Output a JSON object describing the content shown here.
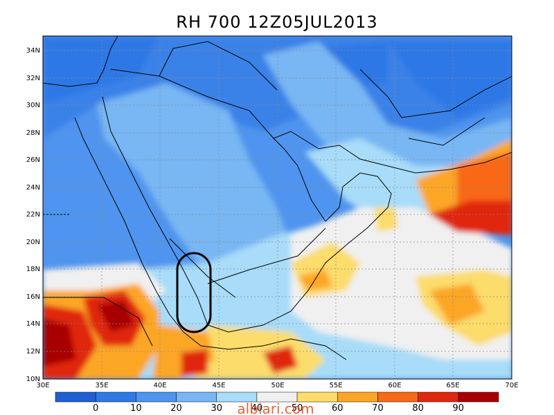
{
  "title": "RH 700 12Z05JUL2013",
  "lat_labels": [
    "34N",
    "32N",
    "30N",
    "28N",
    "26N",
    "24N",
    "22N",
    "20N",
    "18N",
    "16N",
    "14N",
    "12N",
    "10N"
  ],
  "lon_labels": [
    "30E",
    "35E",
    "40E",
    "45E",
    "50E",
    "55E",
    "60E",
    "65E",
    "70E"
  ],
  "colorbar": {
    "colors": [
      "#1f5fd6",
      "#2f78e6",
      "#4f94ee",
      "#78b6f4",
      "#a8dcf8",
      "#f0f0f0",
      "#fcdc6a",
      "#fca628",
      "#f86818",
      "#e02810",
      "#a80000"
    ],
    "labels": [
      "0",
      "10",
      "20",
      "30",
      "40",
      "50",
      "60",
      "70",
      "80",
      "90"
    ]
  },
  "watermark": "albiari.com"
}
